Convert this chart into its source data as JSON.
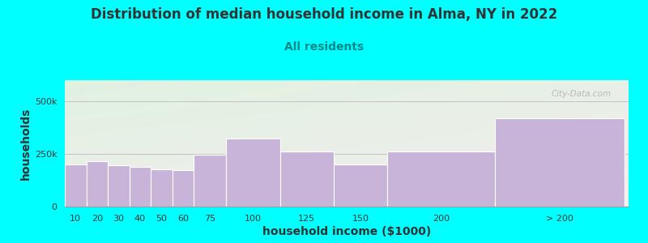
{
  "title": "Distribution of median household income in Alma, NY in 2022",
  "subtitle": "All residents",
  "xlabel": "household income ($1000)",
  "ylabel": "households",
  "categories": [
    "10",
    "20",
    "30",
    "40",
    "50",
    "60",
    "75",
    "100",
    "125",
    "150",
    "200",
    "> 200"
  ],
  "values": [
    200000,
    215000,
    195000,
    188000,
    178000,
    172000,
    245000,
    325000,
    262000,
    200000,
    262000,
    420000
  ],
  "bar_color": "#c8b4d8",
  "bar_edgecolor": "#ffffff",
  "background_color": "#00ffff",
  "title_color": "#333333",
  "subtitle_color": "#008888",
  "title_fontsize": 12,
  "subtitle_fontsize": 10,
  "axis_label_fontsize": 10,
  "ytick_labels": [
    "0",
    "250k",
    "500k"
  ],
  "ytick_values": [
    0,
    250000,
    500000
  ],
  "ylim": [
    0,
    600000
  ],
  "watermark": "City-Data.com",
  "lefts": [
    0,
    10,
    20,
    30,
    40,
    50,
    60,
    75,
    100,
    125,
    150,
    200
  ],
  "widths": [
    10,
    10,
    10,
    10,
    10,
    10,
    15,
    25,
    25,
    25,
    50,
    60
  ]
}
